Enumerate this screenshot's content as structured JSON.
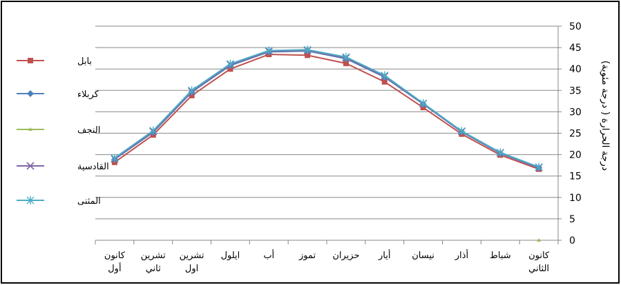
{
  "chart_data": {
    "type": "line",
    "ylabel": "درجة الحرارة ( درجة مئوية)",
    "ylim": [
      0,
      50
    ],
    "yticks": [
      0,
      5,
      10,
      15,
      20,
      25,
      30,
      35,
      40,
      45,
      50
    ],
    "categories": [
      [
        "كانون",
        "الثاني"
      ],
      [
        "شباط"
      ],
      [
        "أذار"
      ],
      [
        "نيسان"
      ],
      [
        "أيار"
      ],
      [
        "حزيران"
      ],
      [
        "تموز"
      ],
      [
        "أب"
      ],
      [
        "ايلول"
      ],
      [
        "تشرين",
        "اول"
      ],
      [
        "تشرين",
        "ثاني"
      ],
      [
        "كانون",
        "أول"
      ]
    ],
    "series": [
      {
        "name": "بابل",
        "color": "#c0504d",
        "marker": "square",
        "values": [
          16.6,
          19.9,
          24.8,
          31.0,
          37.0,
          41.3,
          43.2,
          43.4,
          40.0,
          33.8,
          24.6,
          18.2
        ]
      },
      {
        "name": "كربلاء",
        "color": "#4f81bd",
        "marker": "diamond",
        "values": [
          16.9,
          20.3,
          25.3,
          31.8,
          38.1,
          42.4,
          44.2,
          44.0,
          40.8,
          34.6,
          25.2,
          18.9
        ]
      },
      {
        "name": "النجف",
        "color": "#9bbb59",
        "marker": "triangle",
        "values": [
          0,
          null,
          null,
          null,
          null,
          null,
          null,
          null,
          null,
          null,
          null,
          null
        ]
      },
      {
        "name": "القادسية",
        "color": "#8064a2",
        "marker": "x",
        "values": [
          17.0,
          20.4,
          25.4,
          31.9,
          38.3,
          42.6,
          44.3,
          44.1,
          41.0,
          34.8,
          25.4,
          19.0
        ]
      },
      {
        "name": "المثنى",
        "color": "#4bacc6",
        "marker": "star",
        "values": [
          17.1,
          20.5,
          25.5,
          32.0,
          38.5,
          42.8,
          44.5,
          44.3,
          41.2,
          35.0,
          25.6,
          19.2
        ]
      }
    ],
    "grid": true,
    "legend_position": "left"
  }
}
